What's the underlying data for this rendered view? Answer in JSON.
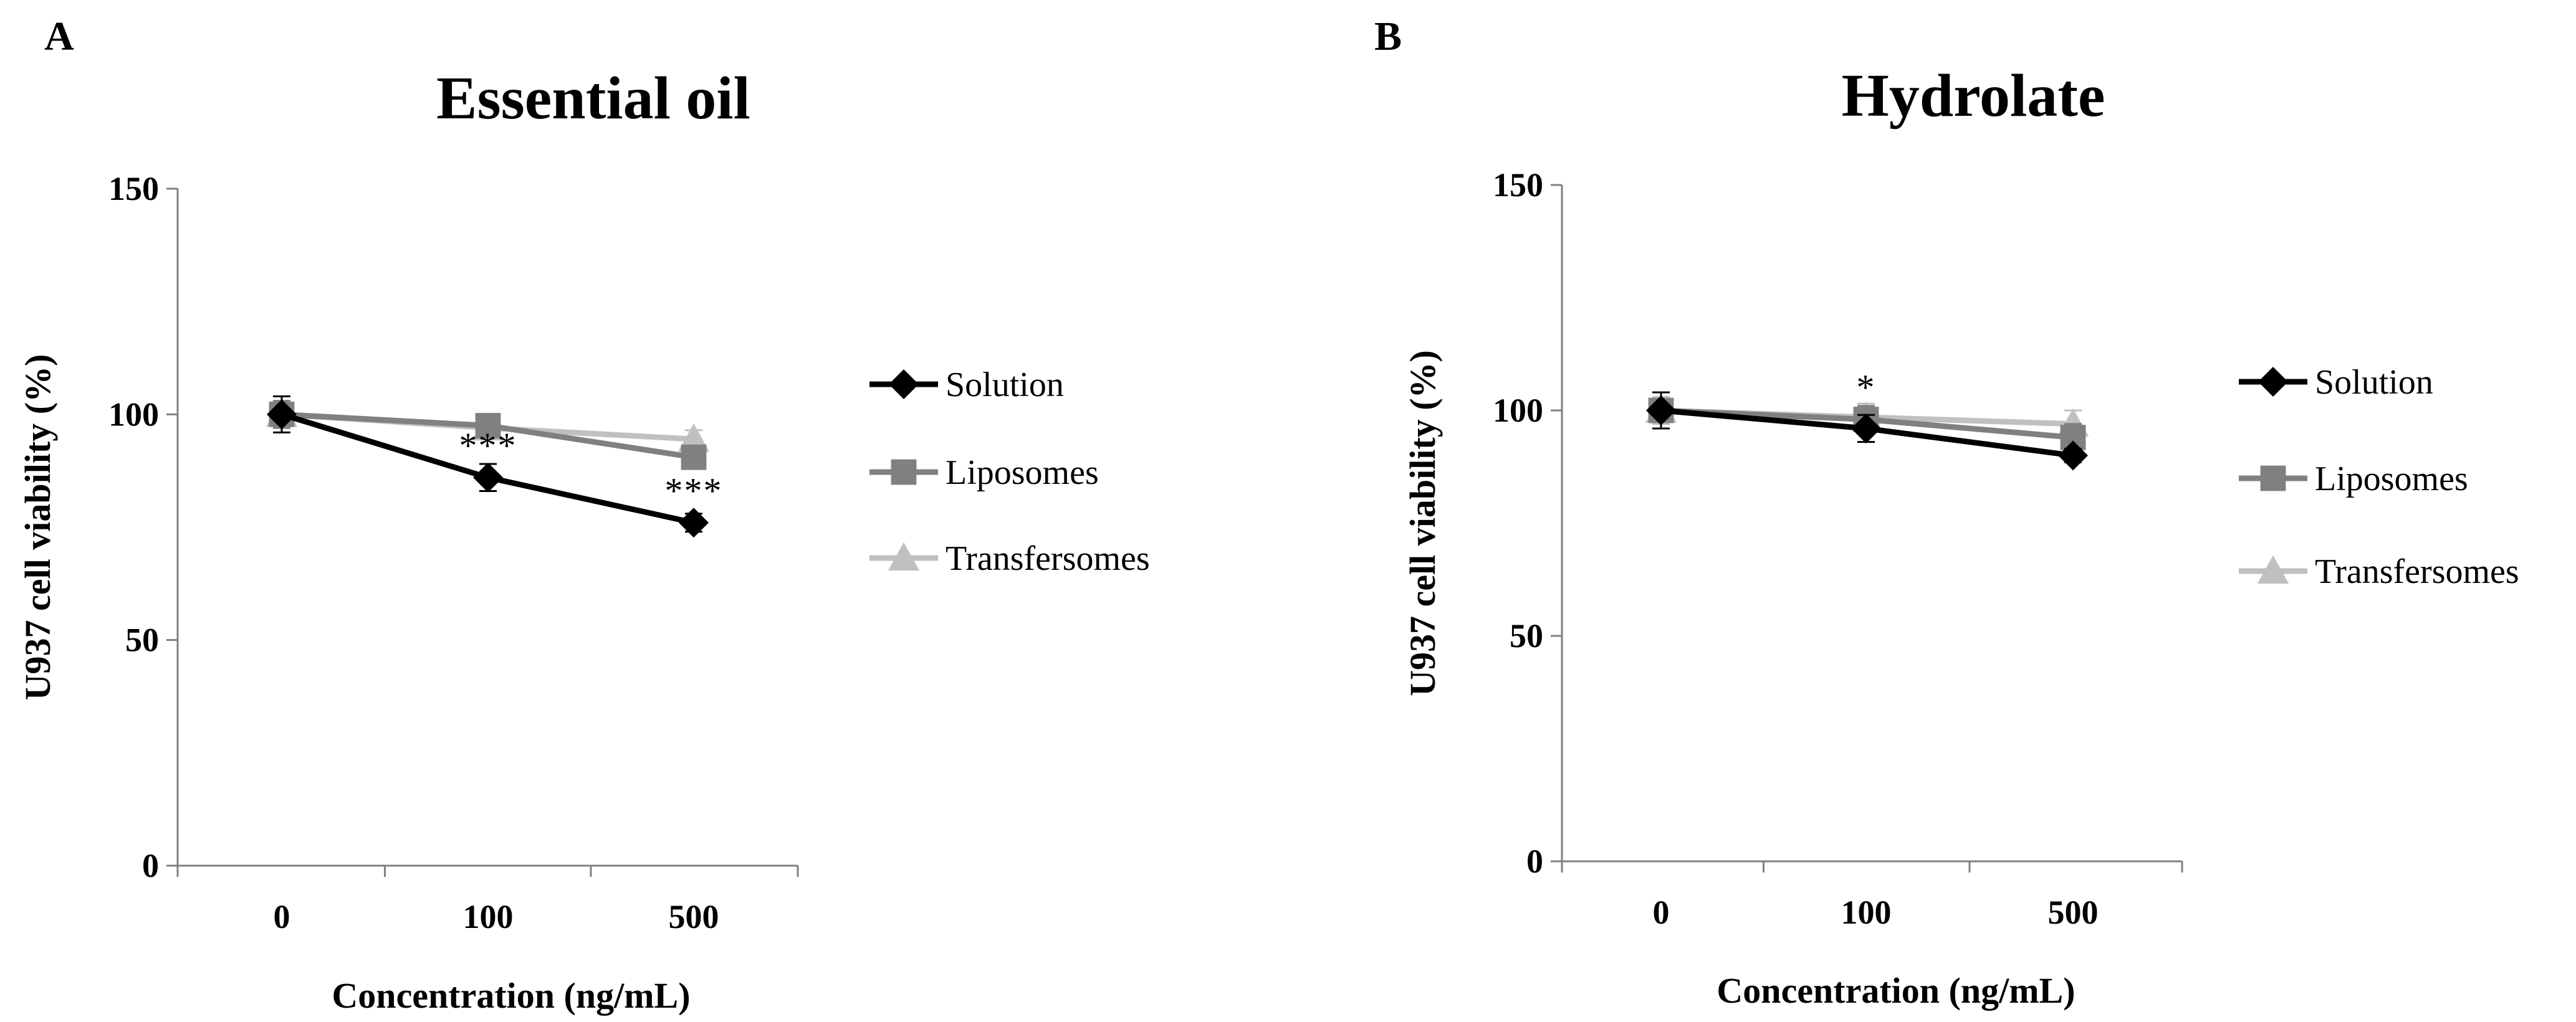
{
  "figure": {
    "colors": {
      "solution": "#000000",
      "liposomes": "#808080",
      "transfersomes": "#c0c0c0",
      "axis": "#808080",
      "text": "#000000"
    }
  },
  "chart_data": [
    {
      "panel_letter": "A",
      "type": "line",
      "title": "Essential oil",
      "xlabel": "Concentration (ng/mL)",
      "ylabel": "U937 cell viability (%)",
      "categories": [
        "0",
        "100",
        "500"
      ],
      "ylim": [
        0,
        150
      ],
      "yticks": [
        0,
        50,
        100,
        150
      ],
      "grid": false,
      "legend_position": "right",
      "series": [
        {
          "name": "Solution",
          "marker": "diamond",
          "color": "#000000",
          "values": [
            100,
            86,
            76
          ],
          "errors": [
            4,
            3,
            2
          ]
        },
        {
          "name": "Liposomes",
          "marker": "square",
          "color": "#808080",
          "values": [
            100,
            97.5,
            90.5
          ],
          "errors": [
            3,
            2,
            2
          ]
        },
        {
          "name": "Transfersomes",
          "marker": "triangle",
          "color": "#c0c0c0",
          "values": [
            100,
            97,
            94.5
          ],
          "errors": [
            3,
            2,
            2
          ]
        }
      ],
      "annotations": [
        {
          "category": "100",
          "value": 86,
          "text": "***"
        },
        {
          "category": "500",
          "value": 76,
          "text": "***"
        }
      ]
    },
    {
      "panel_letter": "B",
      "type": "line",
      "title": "Hydrolate",
      "xlabel": "Concentration (ng/mL)",
      "ylabel": "U937 cell viability (%)",
      "categories": [
        "0",
        "100",
        "500"
      ],
      "ylim": [
        0,
        150
      ],
      "yticks": [
        0,
        50,
        100,
        150
      ],
      "grid": false,
      "legend_position": "right",
      "series": [
        {
          "name": "Solution",
          "marker": "diamond",
          "color": "#000000",
          "values": [
            100,
            96,
            90
          ],
          "errors": [
            4,
            3,
            1.5
          ]
        },
        {
          "name": "Liposomes",
          "marker": "square",
          "color": "#808080",
          "values": [
            100,
            98,
            94
          ],
          "errors": [
            4,
            3,
            3
          ]
        },
        {
          "name": "Transfersomes",
          "marker": "triangle",
          "color": "#c0c0c0",
          "values": [
            100,
            98.5,
            97
          ],
          "errors": [
            3,
            3,
            3
          ]
        }
      ],
      "annotations": [
        {
          "category": "100",
          "value": 98,
          "text": "*"
        }
      ]
    }
  ]
}
